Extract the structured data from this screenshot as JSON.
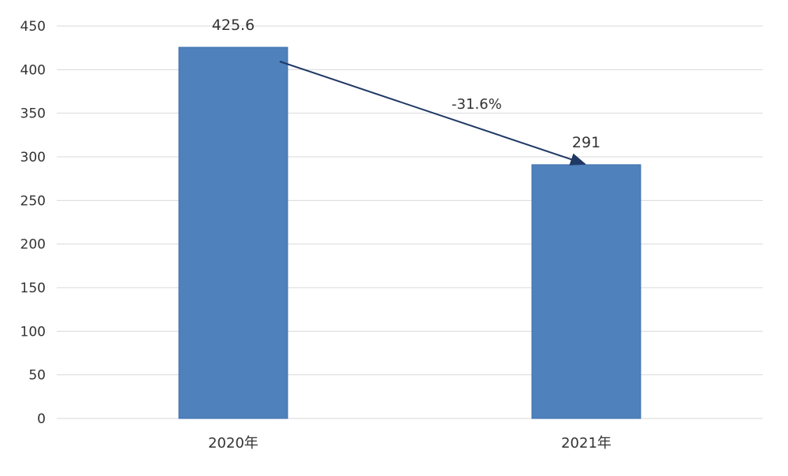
{
  "chart_data": {
    "type": "bar",
    "categories": [
      "2020年",
      "2021年"
    ],
    "values": [
      425.6,
      291
    ],
    "data_labels": [
      "425.6",
      "291"
    ],
    "ylim": [
      0,
      450
    ],
    "yticks": [
      0,
      50,
      100,
      150,
      200,
      250,
      300,
      350,
      400,
      450
    ],
    "grid": true,
    "legend": "none",
    "annotation": {
      "text": "-31.6%",
      "from_index": 0,
      "to_index": 1,
      "type": "arrow"
    },
    "colors": {
      "bar": "#4f81bd",
      "bar_edge": "#3d6fab",
      "grid": "#d9d9d9",
      "arrow": "#1f3864",
      "text": "#333333"
    }
  }
}
